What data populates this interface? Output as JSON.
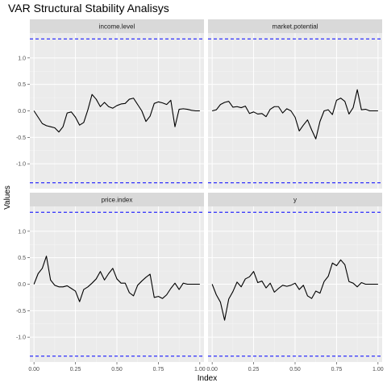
{
  "chart_data": {
    "type": "line",
    "title": "VAR Structural Stability Analisys",
    "xlabel": "Index",
    "ylabel": "Values",
    "xlim": [
      -0.025,
      1.025
    ],
    "ylim": [
      -1.47,
      1.47
    ],
    "xticks": [
      0.0,
      0.25,
      0.5,
      0.75,
      1.0
    ],
    "xtick_labels": [
      "0.00",
      "0.25",
      "0.50",
      "0.75",
      "1.00"
    ],
    "yticks": [
      1.0,
      0.5,
      0.0,
      -0.5,
      -1.0
    ],
    "ytick_labels": [
      "1.0",
      "0.5",
      "0.0",
      "-0.5",
      "-1.0"
    ],
    "grid": true,
    "boundaries": {
      "upper": 1.36,
      "lower": -1.36,
      "color": "#0000ff",
      "style": "dashed"
    },
    "line_color": "#000000",
    "panel_bg": "#ebebeb",
    "strip_bg": "#d9d9d9",
    "x": [
      0.0,
      0.025,
      0.05,
      0.075,
      0.1,
      0.125,
      0.15,
      0.175,
      0.2,
      0.225,
      0.25,
      0.275,
      0.3,
      0.325,
      0.35,
      0.375,
      0.4,
      0.425,
      0.45,
      0.475,
      0.5,
      0.525,
      0.55,
      0.575,
      0.6,
      0.625,
      0.65,
      0.675,
      0.7,
      0.725,
      0.75,
      0.775,
      0.8,
      0.825,
      0.85,
      0.875,
      0.9,
      0.925,
      0.95,
      0.975,
      1.0
    ],
    "series": [
      {
        "name": "income.level",
        "values": [
          0.0,
          -0.12,
          -0.24,
          -0.28,
          -0.3,
          -0.32,
          -0.4,
          -0.3,
          -0.04,
          -0.02,
          -0.12,
          -0.27,
          -0.22,
          0.02,
          0.31,
          0.22,
          0.08,
          0.16,
          0.08,
          0.05,
          0.1,
          0.13,
          0.14,
          0.22,
          0.24,
          0.12,
          0.0,
          -0.2,
          -0.1,
          0.14,
          0.17,
          0.15,
          0.12,
          0.2,
          -0.3,
          0.03,
          0.04,
          0.03,
          0.01,
          0.0,
          0.0
        ]
      },
      {
        "name": "market.potential",
        "values": [
          0.0,
          0.02,
          0.12,
          0.16,
          0.18,
          0.07,
          0.08,
          0.06,
          0.09,
          -0.05,
          -0.02,
          -0.06,
          -0.05,
          -0.11,
          0.03,
          0.08,
          0.08,
          -0.04,
          0.04,
          0.0,
          -0.12,
          -0.38,
          -0.27,
          -0.17,
          -0.36,
          -0.53,
          -0.2,
          0.0,
          0.02,
          -0.07,
          0.2,
          0.24,
          0.18,
          -0.06,
          0.06,
          0.4,
          0.02,
          0.03,
          0.0,
          0.0,
          0.0
        ]
      },
      {
        "name": "price.index",
        "values": [
          0.0,
          0.2,
          0.3,
          0.53,
          0.08,
          -0.02,
          -0.05,
          -0.05,
          -0.03,
          -0.08,
          -0.13,
          -0.33,
          -0.1,
          -0.05,
          0.02,
          0.1,
          0.24,
          0.08,
          0.2,
          0.3,
          0.1,
          0.02,
          0.02,
          -0.16,
          -0.22,
          -0.02,
          0.06,
          0.13,
          0.19,
          -0.25,
          -0.23,
          -0.27,
          -0.2,
          -0.08,
          0.02,
          -0.1,
          0.02,
          0.0,
          0.0,
          0.0,
          0.0
        ]
      },
      {
        "name": "y",
        "values": [
          0.0,
          -0.2,
          -0.34,
          -0.68,
          -0.28,
          -0.14,
          0.04,
          -0.05,
          0.1,
          0.14,
          0.24,
          0.03,
          0.06,
          -0.07,
          0.02,
          -0.15,
          -0.08,
          -0.02,
          -0.04,
          -0.02,
          0.02,
          -0.1,
          -0.02,
          -0.22,
          -0.27,
          -0.13,
          -0.17,
          0.05,
          0.15,
          0.4,
          0.35,
          0.46,
          0.37,
          0.05,
          0.02,
          -0.05,
          0.03,
          0.0,
          0.0,
          0.0,
          0.0
        ]
      }
    ]
  }
}
